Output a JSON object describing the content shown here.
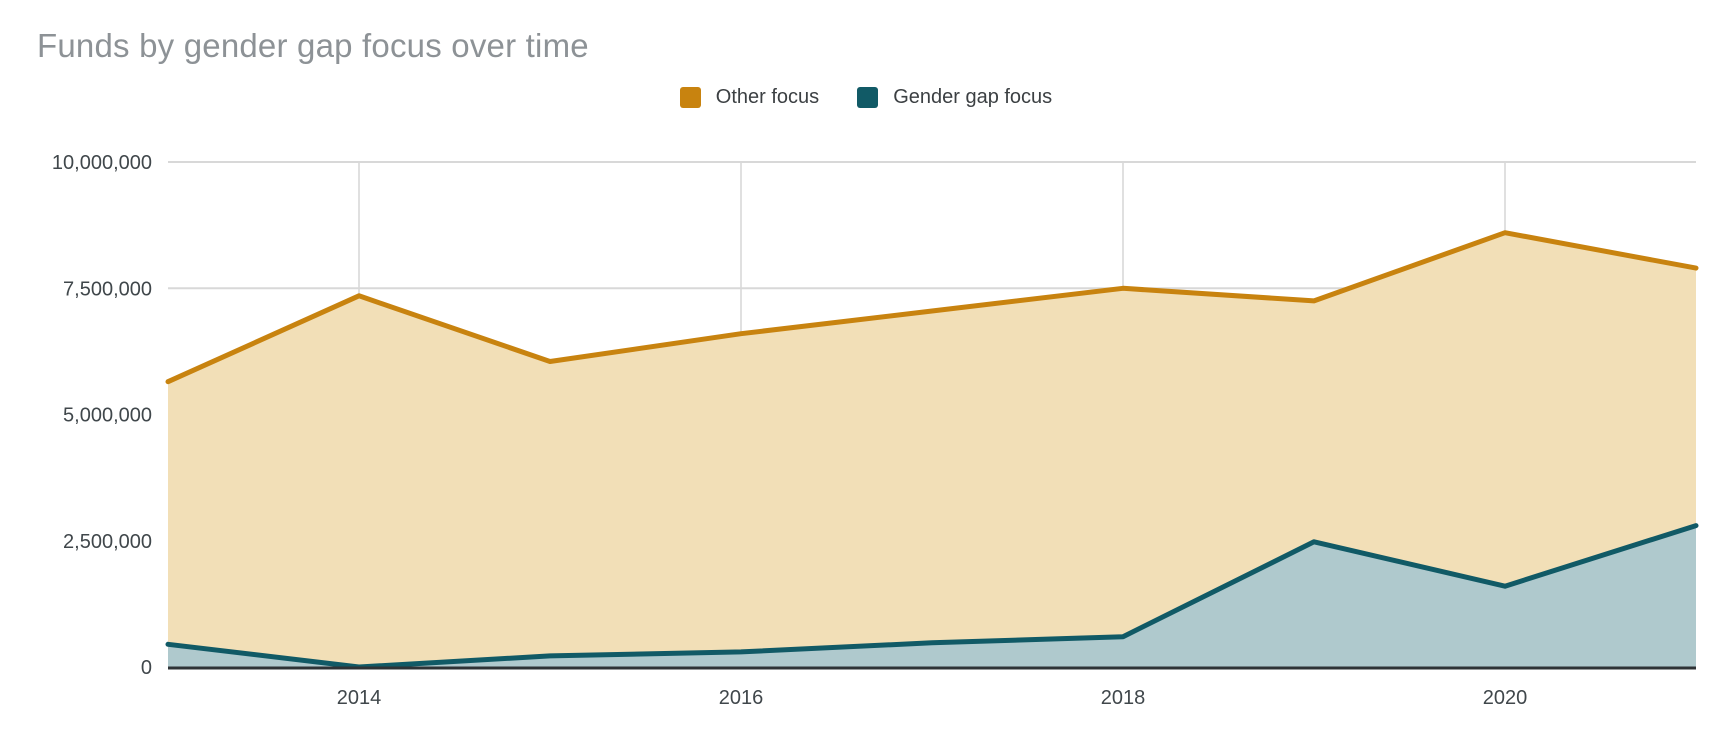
{
  "title": "Funds by gender gap focus over time",
  "legend": {
    "items": [
      {
        "label": "Other focus",
        "color": "#c8830f"
      },
      {
        "label": "Gender gap focus",
        "color": "#115a66"
      }
    ]
  },
  "chart_data": {
    "type": "area",
    "stacked": false,
    "title": "Funds by gender gap focus over time",
    "x": [
      2013,
      2014,
      2015,
      2016,
      2017,
      2018,
      2019,
      2020,
      2021
    ],
    "series": [
      {
        "name": "Other focus",
        "values": [
          5650000,
          7350000,
          6050000,
          6600000,
          7050000,
          7500000,
          7250000,
          8600000,
          7900000
        ],
        "line_color": "#c8830f",
        "fill_color": "#f2dfb7"
      },
      {
        "name": "Gender gap focus",
        "values": [
          450000,
          0,
          220000,
          300000,
          480000,
          600000,
          2480000,
          1600000,
          2800000
        ],
        "line_color": "#115a66",
        "fill_color": "#afc9cd"
      }
    ],
    "xlabel": "",
    "ylabel": "",
    "xlim": [
      2013,
      2021
    ],
    "ylim": [
      0,
      10000000
    ],
    "grid": true,
    "legend_position": "top",
    "y_ticks": [
      {
        "value": 0,
        "label": "0"
      },
      {
        "value": 2500000,
        "label": "2,500,000"
      },
      {
        "value": 5000000,
        "label": "5,000,000"
      },
      {
        "value": 7500000,
        "label": "7,500,000"
      },
      {
        "value": 10000000,
        "label": "10,000,000"
      }
    ],
    "x_ticks": [
      {
        "value": 2014,
        "label": "2014"
      },
      {
        "value": 2016,
        "label": "2016"
      },
      {
        "value": 2018,
        "label": "2018"
      },
      {
        "value": 2020,
        "label": "2020"
      }
    ]
  },
  "colors": {
    "background": "#ffffff",
    "gridline": "#d8d8d8",
    "axis_line": "#2e3336",
    "tick_label": "#40474b",
    "title": "#8d9296"
  }
}
